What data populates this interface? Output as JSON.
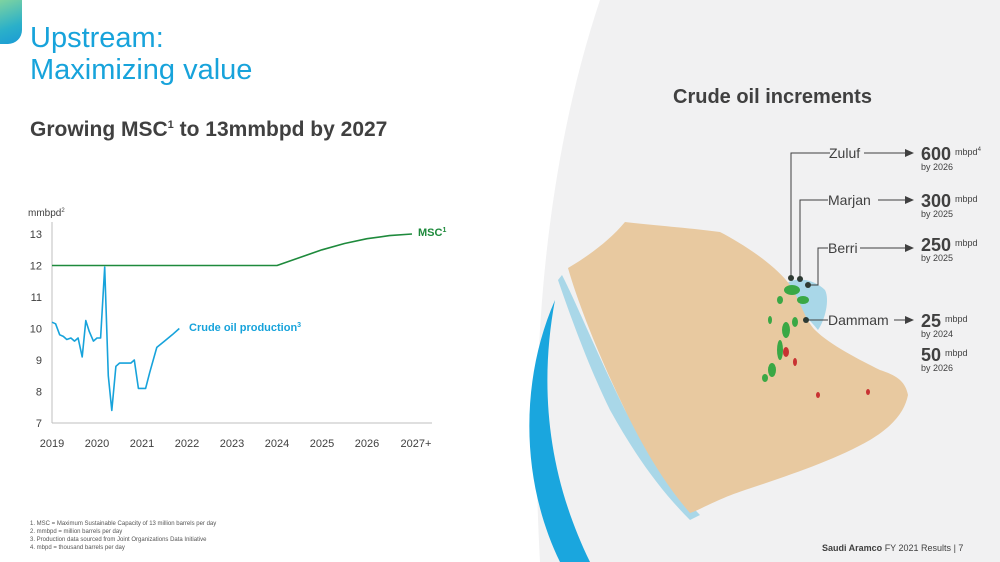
{
  "header": {
    "title_line1": "Upstream:",
    "title_line2": "Maximizing value",
    "subtitle_prefix": "Growing MSC",
    "subtitle_sup": "1",
    "subtitle_suffix": " to 13mmbpd by 2027"
  },
  "chart_data": {
    "type": "line",
    "ylabel": "mmbpd",
    "ylabel_sup": "2",
    "ylim": [
      7,
      13
    ],
    "yticks": [
      "7",
      "8",
      "9",
      "10",
      "11",
      "12",
      "13"
    ],
    "xlim": [
      2019,
      2027
    ],
    "xticks": [
      {
        "label": "2019",
        "x": 2019
      },
      {
        "label": "2020",
        "x": 2020
      },
      {
        "label": "2021",
        "x": 2021
      },
      {
        "label": "2022",
        "x": 2022
      },
      {
        "label": "2023",
        "x": 2023
      },
      {
        "label": "2024",
        "x": 2024
      },
      {
        "label": "2025",
        "x": 2025
      },
      {
        "label": "2026",
        "x": 2026
      },
      {
        "label": "2027+",
        "x": 2027
      }
    ],
    "grid": false,
    "series": [
      {
        "name": "MSC",
        "name_sup": "1",
        "color": "#1e8a3c",
        "points": [
          [
            2019,
            12
          ],
          [
            2024,
            12
          ],
          [
            2024.5,
            12.25
          ],
          [
            2025,
            12.5
          ],
          [
            2025.5,
            12.7
          ],
          [
            2026,
            12.85
          ],
          [
            2026.5,
            12.95
          ],
          [
            2027,
            13
          ]
        ]
      },
      {
        "name": "Crude oil production",
        "name_sup": "3",
        "color": "#17a3db",
        "points": [
          [
            2019,
            10.2
          ],
          [
            2019.08,
            10.15
          ],
          [
            2019.17,
            9.8
          ],
          [
            2019.25,
            9.75
          ],
          [
            2019.33,
            9.65
          ],
          [
            2019.42,
            9.7
          ],
          [
            2019.5,
            9.6
          ],
          [
            2019.58,
            9.7
          ],
          [
            2019.67,
            9.1
          ],
          [
            2019.75,
            10.25
          ],
          [
            2019.83,
            9.9
          ],
          [
            2019.92,
            9.6
          ],
          [
            2020.0,
            9.7
          ],
          [
            2020.08,
            9.7
          ],
          [
            2020.17,
            11.95
          ],
          [
            2020.25,
            8.5
          ],
          [
            2020.33,
            7.4
          ],
          [
            2020.42,
            8.8
          ],
          [
            2020.5,
            8.9
          ],
          [
            2020.58,
            8.9
          ],
          [
            2020.67,
            8.9
          ],
          [
            2020.75,
            8.9
          ],
          [
            2020.83,
            9.0
          ],
          [
            2020.92,
            8.1
          ],
          [
            2021.0,
            8.1
          ],
          [
            2021.08,
            8.1
          ],
          [
            2021.17,
            8.6
          ],
          [
            2021.33,
            9.4
          ],
          [
            2021.5,
            9.6
          ],
          [
            2021.67,
            9.8
          ],
          [
            2021.83,
            10.0
          ]
        ]
      }
    ]
  },
  "map": {
    "title": "Crude oil increments",
    "fields": [
      {
        "name": "Zuluf",
        "value": "600",
        "unit": "mbpd",
        "unit_sup": "4",
        "by": "by 2026"
      },
      {
        "name": "Marjan",
        "value": "300",
        "unit": "mbpd",
        "unit_sup": "",
        "by": "by 2025"
      },
      {
        "name": "Berri",
        "value": "250",
        "unit": "mbpd",
        "unit_sup": "",
        "by": "by 2025"
      },
      {
        "name": "Dammam",
        "value": "25",
        "unit": "mbpd",
        "unit_sup": "",
        "by": "by 2024"
      },
      {
        "name": "",
        "value": "50",
        "unit": "mbpd",
        "unit_sup": "",
        "by": "by 2026"
      }
    ],
    "colors": {
      "land": "#e8c9a0",
      "sea": "#a9d7e8",
      "field": "#3aa845",
      "new": "#c83232"
    }
  },
  "footnotes": [
    "1.  MSC = Maximum Sustainable Capacity of 13 million barrels per day",
    "2.  mmbpd = million barrels per day",
    "3.  Production data sourced from Joint Organizations Data Initiative",
    "4.  mbpd = thousand barrels per day"
  ],
  "footer": {
    "company": "Saudi Aramco",
    "report": " FY 2021 Results",
    "sep": "  |  ",
    "page": "7"
  }
}
